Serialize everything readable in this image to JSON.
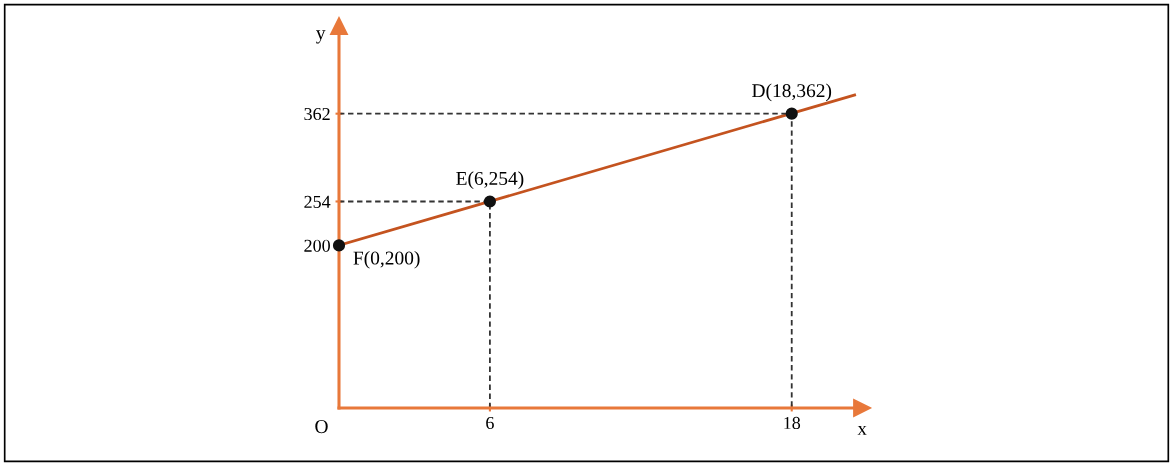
{
  "chart_data": {
    "type": "line",
    "xlabel": "x",
    "ylabel": "y",
    "xlim": [
      0,
      20.8
    ],
    "ylim": [
      0,
      470
    ],
    "xticks": [
      6,
      18
    ],
    "yticks": [
      200,
      254,
      362
    ],
    "grid": false,
    "color": "#e8783a",
    "series": [
      {
        "color": "#c4531f",
        "line_style": "solid",
        "marker": "none",
        "x": [
          0,
          20.5
        ],
        "values": [
          200,
          385
        ]
      },
      {
        "type": "line",
        "color": "#333333",
        "line_style": "dashed",
        "marker": "none",
        "x": [
          0,
          18,
          18
        ],
        "values": [
          362,
          362,
          0
        ]
      },
      {
        "type": "line",
        "color": "#333333",
        "line_style": "dashed",
        "marker": "none",
        "x": [
          0,
          6,
          6
        ],
        "values": [
          254,
          254,
          0
        ]
      },
      {
        "type": "scatter",
        "color": "#111111",
        "marker": "circle",
        "x": [
          0,
          6,
          18
        ],
        "values": [
          200,
          254,
          362
        ]
      }
    ],
    "annotations": [
      {
        "text": "F(0,200)",
        "x": 0,
        "y": 200
      },
      {
        "text": "E(6,254)",
        "x": 6,
        "y": 254
      },
      {
        "text": "D(18,362)",
        "x": 18,
        "y": 362
      },
      "O"
    ]
  }
}
